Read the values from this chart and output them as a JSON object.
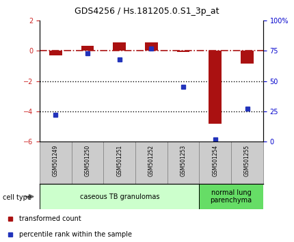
{
  "title": "GDS4256 / Hs.181205.0.S1_3p_at",
  "samples": [
    "GSM501249",
    "GSM501250",
    "GSM501251",
    "GSM501252",
    "GSM501253",
    "GSM501254",
    "GSM501255"
  ],
  "transformed_count": [
    -0.3,
    0.35,
    0.55,
    0.55,
    -0.08,
    -4.8,
    -0.85
  ],
  "percentile_rank": [
    22,
    73,
    68,
    77,
    45,
    2,
    27
  ],
  "ylim_left": [
    -6,
    2
  ],
  "ylim_right": [
    0,
    100
  ],
  "bar_color_red": "#aa1111",
  "bar_color_blue": "#2233bb",
  "dotted_line_y": [
    -2,
    -4
  ],
  "cell_type_groups": [
    {
      "label": "caseous TB granulomas",
      "start": 0,
      "end": 5,
      "color": "#ccffcc"
    },
    {
      "label": "normal lung\nparenchyma",
      "start": 5,
      "end": 7,
      "color": "#66dd66"
    }
  ],
  "legend_items": [
    {
      "color": "#aa1111",
      "label": "transformed count"
    },
    {
      "color": "#2233bb",
      "label": "percentile rank within the sample"
    }
  ],
  "cell_type_label": "cell type",
  "background_color": "#ffffff",
  "tick_label_color_left": "#cc2222",
  "tick_label_color_right": "#0000cc",
  "yticks_left": [
    -6,
    -4,
    -2,
    0,
    2
  ],
  "yticks_right": [
    0,
    25,
    50,
    75,
    100
  ],
  "bar_width": 0.4,
  "blue_marker_size": 5
}
